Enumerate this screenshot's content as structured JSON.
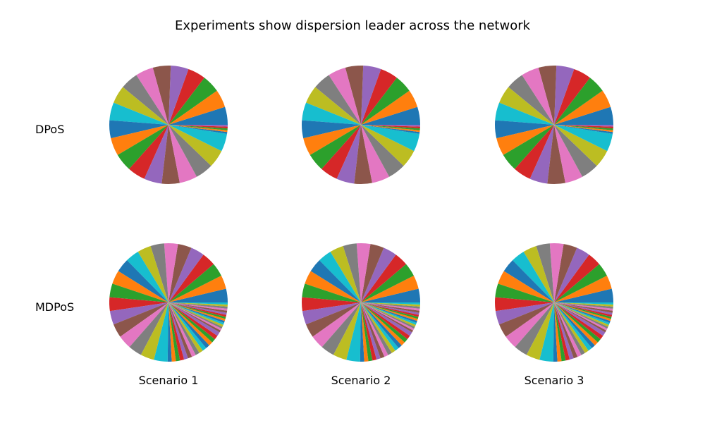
{
  "title": "Experiments show dispersion leader across the network",
  "row_labels": [
    "DPoS",
    "MDPoS"
  ],
  "col_labels": [
    "Scenario 1",
    "Scenario 2",
    "Scenario 3"
  ],
  "palette": [
    "#1f77b4",
    "#ff7f0e",
    "#2ca02c",
    "#d62728",
    "#9467bd",
    "#8c564b",
    "#e377c2",
    "#7f7f7f",
    "#bcbd22",
    "#17becf"
  ],
  "chart_data": [
    {
      "type": "pie",
      "row": "DPoS",
      "column": "Scenario 1",
      "values": [
        1,
        1,
        1,
        1,
        1,
        1,
        1,
        1,
        1,
        1,
        1,
        1,
        1,
        1,
        1,
        1,
        1,
        1,
        1,
        1,
        0.1,
        0.1,
        0.1,
        0.1,
        0.1
      ]
    },
    {
      "type": "pie",
      "row": "DPoS",
      "column": "Scenario 2",
      "values": [
        1,
        1,
        1,
        1,
        1,
        1,
        1,
        1,
        1,
        1,
        1,
        1,
        1,
        1,
        1,
        1,
        1,
        1,
        1,
        1,
        0.1,
        0.1,
        0.1,
        0.1,
        0.1
      ]
    },
    {
      "type": "pie",
      "row": "DPoS",
      "column": "Scenario 3",
      "values": [
        1,
        1,
        1,
        1,
        1,
        1,
        1,
        1,
        1,
        1,
        1,
        1,
        1,
        1,
        1,
        1,
        1,
        1,
        1,
        1,
        0.1,
        0.1,
        0.1,
        0.1,
        0.1
      ]
    },
    {
      "type": "pie",
      "row": "MDPoS",
      "column": "Scenario 1",
      "values": [
        1,
        1,
        1,
        1,
        1,
        1,
        1,
        1,
        1,
        1,
        1,
        1,
        1,
        1,
        1,
        1,
        1,
        1,
        1,
        1,
        0.3,
        0.3,
        0.3,
        0.3,
        0.3,
        0.3,
        0.3,
        0.3,
        0.3,
        0.3,
        0.3,
        0.3,
        0.3,
        0.3,
        0.3,
        0.15,
        0.15,
        0.15,
        0.15,
        0.15,
        0.15,
        0.15,
        0.15,
        0.15,
        0.15,
        0.15,
        0.15,
        0.15,
        0.15,
        0.15
      ]
    },
    {
      "type": "pie",
      "row": "MDPoS",
      "column": "Scenario 2",
      "values": [
        1,
        1,
        1,
        1,
        1,
        1,
        1,
        1,
        1,
        1,
        1,
        1,
        1,
        1,
        1,
        1,
        1,
        1,
        1,
        1,
        0.3,
        0.3,
        0.3,
        0.3,
        0.3,
        0.3,
        0.3,
        0.3,
        0.3,
        0.3,
        0.3,
        0.3,
        0.3,
        0.3,
        0.3,
        0.15,
        0.15,
        0.15,
        0.15,
        0.15,
        0.15,
        0.15,
        0.15,
        0.15,
        0.15,
        0.15,
        0.15,
        0.15,
        0.15,
        0.15
      ]
    },
    {
      "type": "pie",
      "row": "MDPoS",
      "column": "Scenario 3",
      "values": [
        1,
        1,
        1,
        1,
        1,
        1,
        1,
        1,
        1,
        1,
        1,
        1,
        1,
        1,
        1,
        1,
        1,
        1,
        1,
        1,
        0.3,
        0.3,
        0.3,
        0.3,
        0.3,
        0.3,
        0.3,
        0.3,
        0.3,
        0.3,
        0.3,
        0.3,
        0.3,
        0.3,
        0.3,
        0.15,
        0.15,
        0.15,
        0.15,
        0.15,
        0.15,
        0.15,
        0.15,
        0.15,
        0.15,
        0.15,
        0.15,
        0.15,
        0.15,
        0.15
      ]
    }
  ]
}
